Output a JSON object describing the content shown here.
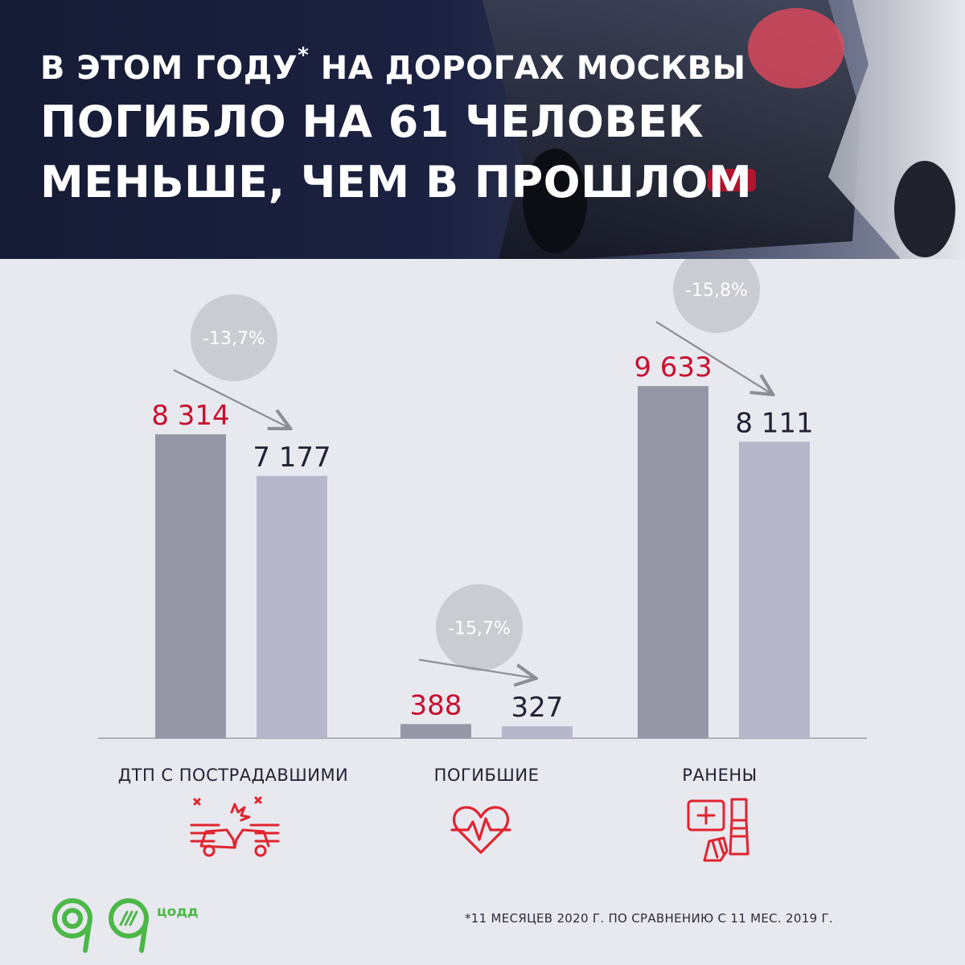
{
  "header": {
    "title_line1": "В ЭТОМ ГОДУ",
    "title_star": "*",
    "title_line1_rest": " НА ДОРОГАХ МОСКВЫ",
    "title_line2": "ПОГИБЛО НА 61 ЧЕЛОВЕК",
    "title_line3": "МЕНЬШЕ, ЧЕМ В ПРОШЛОМ"
  },
  "chart_data": {
    "type": "bar",
    "categories": [
      "ДТП С ПОСТРАДАВШИМИ",
      "ПОГИБШИЕ",
      "РАНЕНЫ"
    ],
    "series": [
      {
        "values": [
          8314,
          388,
          9633
        ],
        "labels": [
          "8 314",
          "388",
          "9 633"
        ]
      },
      {
        "values": [
          7177,
          327,
          8111
        ],
        "labels": [
          "7 177",
          "327",
          "8 111"
        ]
      }
    ],
    "changes": [
      "-13,7%",
      "-15,7%",
      "-15,8%"
    ],
    "ylim": [
      0,
      11000
    ],
    "colors": {
      "series_1_bar": "#9696a6",
      "series_2_bar": "#b7b7cc",
      "series_1_label": "#c8102e",
      "series_2_label": "#1f2233",
      "change_bubble": "#c5c5cd",
      "arrow": "#8d8d97",
      "baseline": "#9a9aa6"
    }
  },
  "icons": [
    "crash-icon",
    "heart-pulse-icon",
    "first-aid-cast-icon"
  ],
  "accent_color": "#e0242f",
  "logo": {
    "label": "цодд",
    "color": "#4cb848"
  },
  "footnote": "*11 МЕСЯЦЕВ 2020 Г. ПО СРАВНЕНИЮ С 11 МЕС. 2019 Г."
}
